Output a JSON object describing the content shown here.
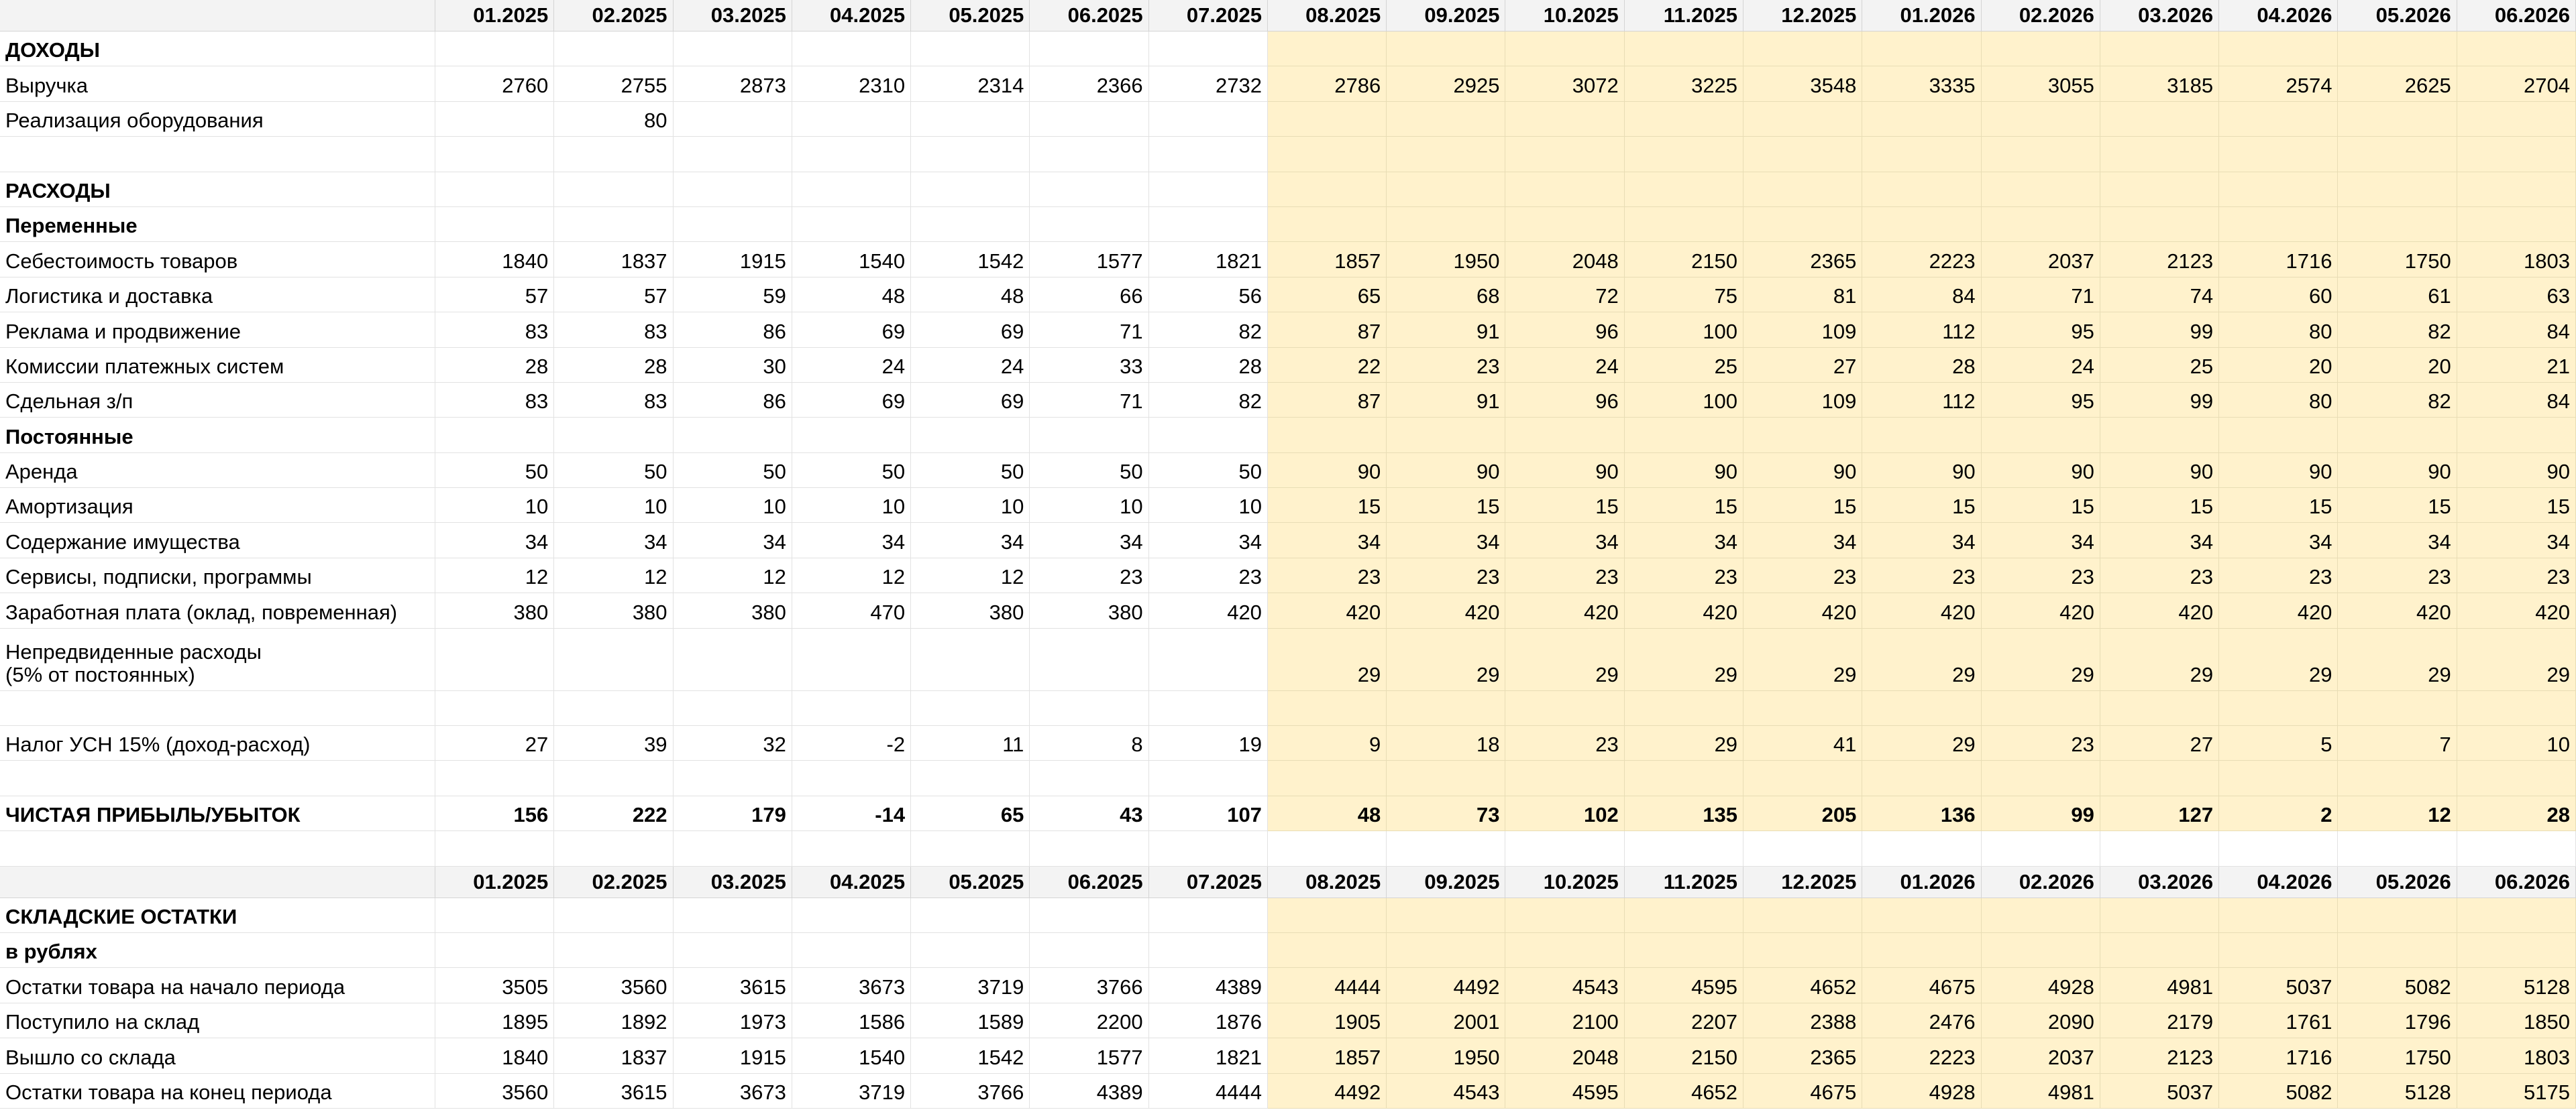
{
  "table1": {
    "months": [
      "01.2025",
      "02.2025",
      "03.2025",
      "04.2025",
      "05.2025",
      "06.2025",
      "07.2025",
      "08.2025",
      "09.2025",
      "10.2025",
      "11.2025",
      "12.2025",
      "01.2026",
      "02.2026",
      "03.2026",
      "04.2026",
      "05.2026",
      "06.2026"
    ],
    "rows": [
      {
        "label": "ДОХОДЫ"
      },
      {
        "label": "Выручка",
        "values": [
          2760,
          2755,
          2873,
          2310,
          2314,
          2366,
          2732,
          2786,
          2925,
          3072,
          3225,
          3548,
          3335,
          3055,
          3185,
          2574,
          2625,
          2704
        ]
      },
      {
        "label": "Реализация оборудования",
        "values": [
          null,
          80,
          null,
          null,
          null,
          null,
          null,
          null,
          null,
          null,
          null,
          null,
          null,
          null,
          null,
          null,
          null,
          null
        ]
      },
      {
        "label": "РАСХОДЫ"
      },
      {
        "label": "Переменные"
      },
      {
        "label": "Себестоимость товаров",
        "values": [
          1840,
          1837,
          1915,
          1540,
          1542,
          1577,
          1821,
          1857,
          1950,
          2048,
          2150,
          2365,
          2223,
          2037,
          2123,
          1716,
          1750,
          1803
        ]
      },
      {
        "label": "Логистика и доставка",
        "values": [
          57,
          57,
          59,
          48,
          48,
          66,
          56,
          65,
          68,
          72,
          75,
          81,
          84,
          71,
          74,
          60,
          61,
          63
        ]
      },
      {
        "label": "Реклама и продвижение",
        "values": [
          83,
          83,
          86,
          69,
          69,
          71,
          82,
          87,
          91,
          96,
          100,
          109,
          112,
          95,
          99,
          80,
          82,
          84
        ]
      },
      {
        "label": "Комиссии платежных систем",
        "values": [
          28,
          28,
          30,
          24,
          24,
          33,
          28,
          22,
          23,
          24,
          25,
          27,
          28,
          24,
          25,
          20,
          20,
          21
        ]
      },
      {
        "label": "Сдельная з/п",
        "values": [
          83,
          83,
          86,
          69,
          69,
          71,
          82,
          87,
          91,
          96,
          100,
          109,
          112,
          95,
          99,
          80,
          82,
          84
        ]
      },
      {
        "label": "Постоянные"
      },
      {
        "label": "Аренда",
        "values": [
          50,
          50,
          50,
          50,
          50,
          50,
          50,
          90,
          90,
          90,
          90,
          90,
          90,
          90,
          90,
          90,
          90,
          90
        ]
      },
      {
        "label": "Амортизация",
        "values": [
          10,
          10,
          10,
          10,
          10,
          10,
          10,
          15,
          15,
          15,
          15,
          15,
          15,
          15,
          15,
          15,
          15,
          15
        ]
      },
      {
        "label": "Содержание имущества",
        "values": [
          34,
          34,
          34,
          34,
          34,
          34,
          34,
          34,
          34,
          34,
          34,
          34,
          34,
          34,
          34,
          34,
          34,
          34
        ]
      },
      {
        "label": "Сервисы, подписки, программы",
        "values": [
          12,
          12,
          12,
          12,
          12,
          23,
          23,
          23,
          23,
          23,
          23,
          23,
          23,
          23,
          23,
          23,
          23,
          23
        ]
      },
      {
        "label": "Заработная плата (оклад, повременная)",
        "values": [
          380,
          380,
          380,
          470,
          380,
          380,
          420,
          420,
          420,
          420,
          420,
          420,
          420,
          420,
          420,
          420,
          420,
          420
        ]
      },
      {
        "label": "Непредвиденные расходы\n(5% от постоянных)",
        "values": [
          null,
          null,
          null,
          null,
          null,
          null,
          null,
          29,
          29,
          29,
          29,
          29,
          29,
          29,
          29,
          29,
          29,
          29
        ]
      },
      {
        "label": "Налог УСН 15% (доход-расход)",
        "values": [
          27,
          39,
          32,
          -2,
          11,
          8,
          19,
          9,
          18,
          23,
          29,
          41,
          29,
          23,
          27,
          5,
          7,
          10
        ]
      },
      {
        "label": "ЧИСТАЯ ПРИБЫЛЬ/УБЫТОК",
        "values": [
          156,
          222,
          179,
          -14,
          65,
          43,
          107,
          48,
          73,
          102,
          135,
          205,
          136,
          99,
          127,
          2,
          12,
          28
        ]
      }
    ]
  },
  "table2": {
    "months": [
      "01.2025",
      "02.2025",
      "03.2025",
      "04.2025",
      "05.2025",
      "06.2025",
      "07.2025",
      "08.2025",
      "09.2025",
      "10.2025",
      "11.2025",
      "12.2025",
      "01.2026",
      "02.2026",
      "03.2026",
      "04.2026",
      "05.2026",
      "06.2026"
    ],
    "rows": [
      {
        "label": "СКЛАДСКИЕ ОСТАТКИ"
      },
      {
        "label": "в рублях"
      },
      {
        "label": "Остатки товара на начало периода",
        "values": [
          3505,
          3560,
          3615,
          3673,
          3719,
          3766,
          4389,
          4444,
          4492,
          4543,
          4595,
          4652,
          4675,
          4928,
          4981,
          5037,
          5082,
          5128
        ]
      },
      {
        "label": "Поступило на склад",
        "values": [
          1895,
          1892,
          1973,
          1586,
          1589,
          2200,
          1876,
          1905,
          2001,
          2100,
          2207,
          2388,
          2476,
          2090,
          2179,
          1761,
          1796,
          1850
        ]
      },
      {
        "label": "Вышло со склада",
        "values": [
          1840,
          1837,
          1915,
          1540,
          1542,
          1577,
          1821,
          1857,
          1950,
          2048,
          2150,
          2365,
          2223,
          2037,
          2123,
          1716,
          1750,
          1803
        ]
      },
      {
        "label": "Остатки товара на конец периода",
        "values": [
          3560,
          3615,
          3673,
          3719,
          3766,
          4389,
          4444,
          4492,
          4543,
          4595,
          4652,
          4675,
          4928,
          4981,
          5037,
          5082,
          5128,
          5175
        ]
      }
    ]
  }
}
